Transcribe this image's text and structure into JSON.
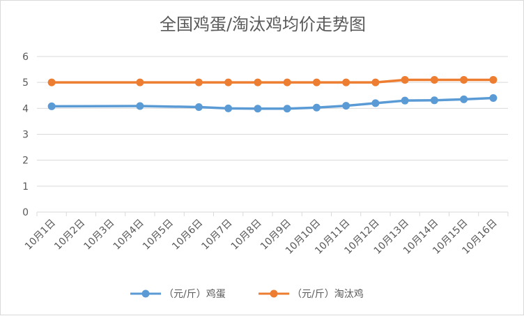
{
  "chart_data": {
    "type": "line",
    "title": "全国鸡蛋/淘汰鸡均价走势图",
    "categories": [
      "10月1日",
      "10月2日",
      "10月3日",
      "10月4日",
      "10月5日",
      "10月6日",
      "10月7日",
      "10月8日",
      "10月9日",
      "10月10日",
      "10月11日",
      "10月12日",
      "10月13日",
      "10月14日",
      "10月15日",
      "10月16日"
    ],
    "ylim": [
      0,
      6
    ],
    "yticks": [
      0,
      1,
      2,
      3,
      4,
      5,
      6
    ],
    "grid": true,
    "legend_position": "bottom",
    "series": [
      {
        "name": "（元/斤）鸡蛋",
        "color": "#5B9BD5",
        "points": [
          [
            0,
            4.08
          ],
          [
            3,
            4.09
          ],
          [
            5,
            4.05
          ],
          [
            6,
            4.0
          ],
          [
            7,
            3.99
          ],
          [
            8,
            3.99
          ],
          [
            9,
            4.03
          ],
          [
            10,
            4.1
          ],
          [
            11,
            4.2
          ],
          [
            12,
            4.3
          ],
          [
            13,
            4.31
          ],
          [
            14,
            4.35
          ],
          [
            15,
            4.4
          ]
        ]
      },
      {
        "name": "（元/斤）淘汰鸡",
        "color": "#ED7D31",
        "points": [
          [
            0,
            5.0
          ],
          [
            3,
            5.0
          ],
          [
            5,
            5.0
          ],
          [
            6,
            5.0
          ],
          [
            7,
            5.0
          ],
          [
            8,
            5.0
          ],
          [
            9,
            5.0
          ],
          [
            10,
            5.0
          ],
          [
            11,
            5.0
          ],
          [
            12,
            5.1
          ],
          [
            13,
            5.1
          ],
          [
            14,
            5.1
          ],
          [
            15,
            5.1
          ]
        ]
      }
    ]
  }
}
